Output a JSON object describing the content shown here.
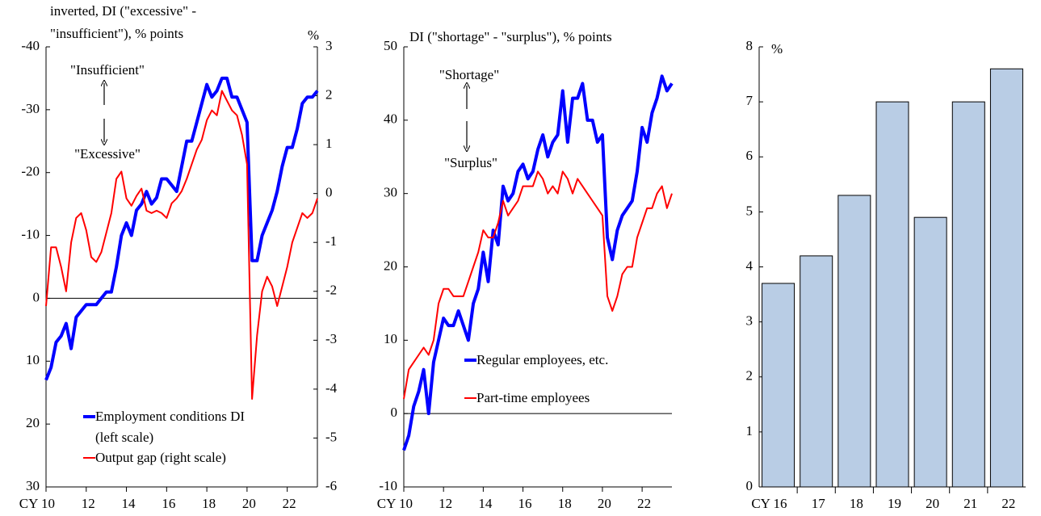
{
  "chart_data": [
    {
      "type": "line",
      "y_label": [
        "inverted, DI (\"excessive\" -",
        "\"insufficient\"), % points"
      ],
      "y2_label": "%",
      "annotations": [
        "\"Insufficient\"",
        "\"Excessive\""
      ],
      "x": [
        10,
        10.25,
        10.5,
        10.75,
        11,
        11.25,
        11.5,
        11.75,
        12,
        12.25,
        12.5,
        12.75,
        13,
        13.25,
        13.5,
        13.75,
        14,
        14.25,
        14.5,
        14.75,
        15,
        15.25,
        15.5,
        15.75,
        16,
        16.25,
        16.5,
        16.75,
        17,
        17.25,
        17.5,
        17.75,
        18,
        18.25,
        18.5,
        18.75,
        19,
        19.25,
        19.5,
        19.75,
        20,
        20.25,
        20.5,
        20.75,
        21,
        21.25,
        21.5,
        21.75,
        22,
        22.25,
        22.5,
        22.75,
        23,
        23.25,
        23.5
      ],
      "xlim": [
        10,
        23.5
      ],
      "xticks": [
        {
          "value": 10,
          "label": "CY 10"
        },
        12,
        14,
        16,
        18,
        20,
        22
      ],
      "ylim": [
        -40,
        30
      ],
      "inverted": true,
      "yticks": [
        -40,
        -30,
        -20,
        -10,
        0,
        10,
        20,
        30
      ],
      "y2lim": [
        -6,
        3
      ],
      "y2ticks": [
        -6,
        -5,
        -4,
        -3,
        -2,
        -1,
        0,
        1,
        2,
        3
      ],
      "series": [
        {
          "name": "Employment conditions DI (left scale)",
          "color": "#0000ff",
          "line_width": 4,
          "values": [
            13,
            11,
            7,
            6,
            4,
            8,
            3,
            2,
            1,
            1,
            1,
            0,
            -1,
            -1,
            -5,
            -10,
            -12,
            -10,
            -14,
            -15,
            -17,
            -15,
            -16,
            -19,
            -19,
            -18,
            -17,
            -21,
            -25,
            -25,
            -28,
            -31,
            -34,
            -32,
            -33,
            -35,
            -35,
            -32,
            -32,
            -30,
            -28,
            -6,
            -6,
            -10,
            -12,
            -14,
            -17,
            -21,
            -24,
            -24,
            -27,
            -31,
            -32,
            -32,
            -33
          ]
        },
        {
          "name": "Output gap (right scale)",
          "color": "#ff0000",
          "line_width": 2,
          "axis": "y2",
          "values": [
            -2.3,
            -1.1,
            -1.1,
            -1.5,
            -2.0,
            -1.0,
            -0.5,
            -0.4,
            -0.75,
            -1.3,
            -1.4,
            -1.2,
            -0.8,
            -0.4,
            0.3,
            0.45,
            -0.1,
            -0.25,
            -0.05,
            0.1,
            -0.35,
            -0.4,
            -0.35,
            -0.4,
            -0.5,
            -0.2,
            -0.1,
            0.05,
            0.3,
            0.6,
            0.9,
            1.1,
            1.5,
            1.7,
            1.6,
            2.1,
            1.9,
            1.7,
            1.6,
            1.2,
            0.6,
            -4.2,
            -2.9,
            -2.0,
            -1.7,
            -1.9,
            -2.3,
            -1.9,
            -1.5,
            -1.0,
            -0.7,
            -0.4,
            -0.5,
            -0.4,
            -0.1
          ]
        }
      ]
    },
    {
      "type": "line",
      "y_label": [
        "DI (\"shortage\" - \"surplus\"),  % points"
      ],
      "annotations": [
        "\"Shortage\"",
        "\"Surplus\""
      ],
      "x": [
        10,
        10.25,
        10.5,
        10.75,
        11,
        11.25,
        11.5,
        11.75,
        12,
        12.25,
        12.5,
        12.75,
        13,
        13.25,
        13.5,
        13.75,
        14,
        14.25,
        14.5,
        14.75,
        15,
        15.25,
        15.5,
        15.75,
        16,
        16.25,
        16.5,
        16.75,
        17,
        17.25,
        17.5,
        17.75,
        18,
        18.25,
        18.5,
        18.75,
        19,
        19.25,
        19.5,
        19.75,
        20,
        20.25,
        20.5,
        20.75,
        21,
        21.25,
        21.5,
        21.75,
        22,
        22.25,
        22.5,
        22.75,
        23,
        23.25,
        23.5
      ],
      "xlim": [
        10,
        23.5
      ],
      "xticks": [
        {
          "value": 10,
          "label": "CY 10"
        },
        12,
        14,
        16,
        18,
        20,
        22
      ],
      "ylim": [
        -10,
        50
      ],
      "yticks": [
        -10,
        0,
        10,
        20,
        30,
        40,
        50
      ],
      "series": [
        {
          "name": "Regular employees, etc.",
          "color": "#0000ff",
          "line_width": 4,
          "values": [
            -5,
            -3,
            1,
            3,
            6,
            0,
            7,
            10,
            13,
            12,
            12,
            14,
            12,
            10,
            15,
            17,
            22,
            18,
            25,
            23,
            31,
            29,
            30,
            33,
            34,
            32,
            33,
            36,
            38,
            35,
            37,
            38,
            44,
            37,
            43,
            43,
            45,
            40,
            40,
            37,
            38,
            24,
            21,
            25,
            27,
            28,
            29,
            33,
            39,
            37,
            41,
            43,
            46,
            44,
            45
          ]
        },
        {
          "name": "Part-time employees",
          "color": "#ff0000",
          "line_width": 2,
          "values": [
            2,
            6,
            7,
            8,
            9,
            8,
            10,
            15,
            17,
            17,
            16,
            16,
            16,
            18,
            20,
            22,
            25,
            24,
            24,
            26,
            29,
            27,
            28,
            29,
            31,
            31,
            31,
            33,
            32,
            30,
            31,
            30,
            33,
            32,
            30,
            32,
            31,
            30,
            29,
            28,
            27,
            16,
            14,
            16,
            19,
            20,
            20,
            24,
            26,
            28,
            28,
            30,
            31,
            28,
            30
          ]
        }
      ]
    },
    {
      "type": "bar",
      "y_label": [
        "%"
      ],
      "categories": [
        "CY 16",
        "17",
        "18",
        "19",
        "20",
        "21",
        "22"
      ],
      "values": [
        3.7,
        4.2,
        5.3,
        7.0,
        4.9,
        7.0,
        7.6
      ],
      "color": "#b9cde5",
      "ylim": [
        0,
        8
      ],
      "yticks": [
        0,
        1,
        2,
        3,
        4,
        5,
        6,
        7,
        8
      ]
    }
  ]
}
